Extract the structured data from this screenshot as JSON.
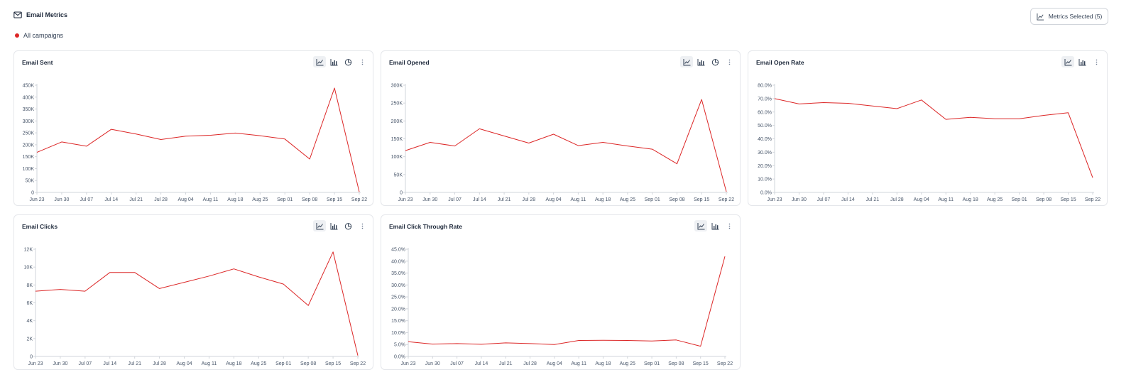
{
  "header": {
    "title": "Email Metrics",
    "icon": "mail-icon"
  },
  "legend": {
    "label": "All campaigns",
    "color": "#dc2626"
  },
  "metrics_button": {
    "label": "Metrics Selected (5)",
    "icon": "line-chart-icon"
  },
  "colors": {
    "series": "#dc2626",
    "grid": "#d1d5db",
    "active_tool_bg": "#eef0f3"
  },
  "x_labels": [
    "Jun 23",
    "Jun 30",
    "Jul 07",
    "Jul 14",
    "Jul 21",
    "Jul 28",
    "Aug 04",
    "Aug 11",
    "Aug 18",
    "Aug 25",
    "Sep 01",
    "Sep 08",
    "Sep 15",
    "Sep 22"
  ],
  "chart_data": [
    {
      "type": "line",
      "title": "Email Sent",
      "tools": [
        "line-chart-icon",
        "bar-chart-icon",
        "pie-chart-icon",
        "more-icon"
      ],
      "series": [
        {
          "values": [
            168000,
            212000,
            194000,
            265000,
            245000,
            222000,
            236000,
            240000,
            249000,
            238000,
            224000,
            140000,
            438000,
            2000
          ]
        }
      ],
      "ylim": [
        0,
        450000
      ],
      "yticks": [
        0,
        50000,
        100000,
        150000,
        200000,
        250000,
        300000,
        350000,
        400000,
        450000
      ],
      "ytick_labels": [
        "0",
        "50K",
        "100K",
        "150K",
        "200K",
        "250K",
        "300K",
        "350K",
        "400K",
        "450K"
      ]
    },
    {
      "type": "line",
      "title": "Email Opened",
      "tools": [
        "line-chart-icon",
        "bar-chart-icon",
        "pie-chart-icon",
        "more-icon"
      ],
      "series": [
        {
          "values": [
            117000,
            140000,
            130000,
            178000,
            158000,
            138000,
            163000,
            131000,
            140000,
            130000,
            121000,
            80000,
            260000,
            2000
          ]
        }
      ],
      "ylim": [
        0,
        300000
      ],
      "yticks": [
        0,
        50000,
        100000,
        150000,
        200000,
        250000,
        300000
      ],
      "ytick_labels": [
        "0",
        "50K",
        "100K",
        "150K",
        "200K",
        "250K",
        "300K"
      ]
    },
    {
      "type": "line",
      "title": "Email Open Rate",
      "tools": [
        "line-chart-icon",
        "bar-chart-icon",
        "more-icon"
      ],
      "series": [
        {
          "values": [
            70.0,
            66.0,
            67.0,
            66.5,
            64.5,
            62.5,
            69.0,
            54.5,
            56.0,
            55.0,
            55.0,
            57.5,
            59.5,
            11.0
          ]
        }
      ],
      "ylim": [
        0,
        80
      ],
      "yticks": [
        0,
        10,
        20,
        30,
        40,
        50,
        60,
        70,
        80
      ],
      "ytick_labels": [
        "0.0%",
        "10.0%",
        "20.0%",
        "30.0%",
        "40.0%",
        "50.0%",
        "60.0%",
        "70.0%",
        "80.0%"
      ]
    },
    {
      "type": "line",
      "title": "Email Clicks",
      "tools": [
        "line-chart-icon",
        "bar-chart-icon",
        "pie-chart-icon",
        "more-icon"
      ],
      "series": [
        {
          "values": [
            7300,
            7500,
            7300,
            9400,
            9400,
            7600,
            8300,
            9000,
            9800,
            8900,
            8100,
            5700,
            11700,
            100
          ]
        }
      ],
      "ylim": [
        0,
        12000
      ],
      "yticks": [
        0,
        2000,
        4000,
        6000,
        8000,
        10000,
        12000
      ],
      "ytick_labels": [
        "0",
        "2K",
        "4K",
        "6K",
        "8K",
        "10K",
        "12K"
      ]
    },
    {
      "type": "line",
      "title": "Email Click Through Rate",
      "tools": [
        "line-chart-icon",
        "bar-chart-icon",
        "more-icon"
      ],
      "series": [
        {
          "values": [
            6.2,
            5.2,
            5.4,
            5.1,
            5.7,
            5.4,
            5.0,
            6.7,
            6.8,
            6.7,
            6.5,
            6.9,
            4.3,
            42.0
          ]
        }
      ],
      "ylim": [
        0,
        45
      ],
      "yticks": [
        0,
        5,
        10,
        15,
        20,
        25,
        30,
        35,
        40,
        45
      ],
      "ytick_labels": [
        "0.0%",
        "5.0%",
        "10.0%",
        "15.0%",
        "20.0%",
        "25.0%",
        "30.0%",
        "35.0%",
        "40.0%",
        "45.0%"
      ]
    }
  ]
}
